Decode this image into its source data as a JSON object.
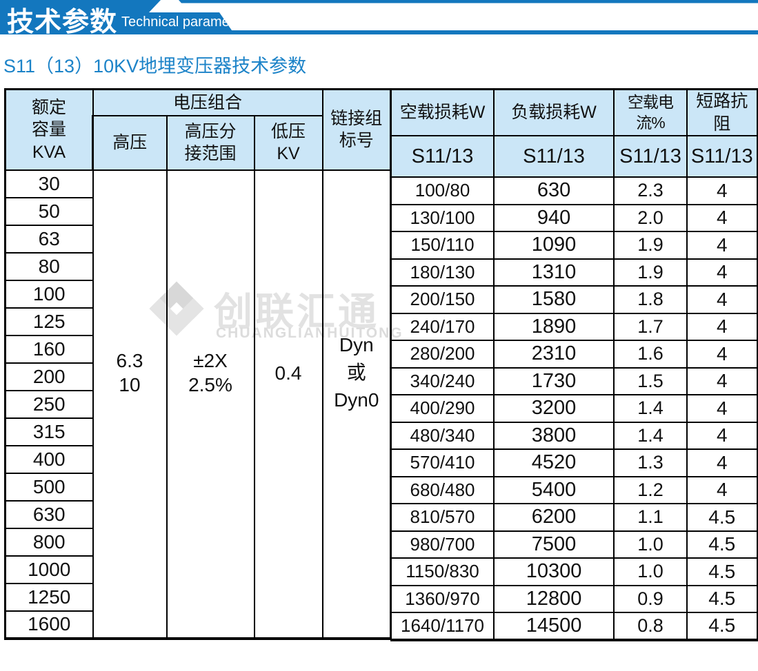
{
  "banner": {
    "title": "技术参数",
    "subtitle": "Technical parameter"
  },
  "page_title": "S11（13）10KV地埋变压器技术参数",
  "watermark": {
    "logo": "interlocked-diamond",
    "text_cn": "创联汇通",
    "text_en": "CHUANGLIANHUITONG"
  },
  "colors": {
    "banner_blue": "#1377BE",
    "title_blue": "#1C83C8",
    "header_bg": "#CBE6F7",
    "border": "#000000",
    "watermark_gray": "#E0E0E0"
  },
  "table": {
    "header": {
      "capacity": [
        "额定",
        "容量",
        "KVA"
      ],
      "voltage_combo": "电压组合",
      "hv": "高压",
      "hv_tap": [
        "高压分",
        "接范围"
      ],
      "lv": [
        "低压",
        "KV"
      ],
      "link_group": [
        "链接组",
        "标号"
      ],
      "noload_loss": "空载损耗W",
      "load_loss": "负载损耗W",
      "noload_current": "空载电流%",
      "impedance": "短路抗阻",
      "model": "S11/13"
    },
    "merged": {
      "hv": [
        "6.3",
        "10"
      ],
      "hv_tap": [
        "±2X",
        "2.5%"
      ],
      "lv": "0.4",
      "link_group": [
        "Dyn",
        "或",
        "Dyn0"
      ]
    },
    "rows": [
      {
        "capacity": "30",
        "noload_loss": "100/80",
        "load_loss": "630",
        "noload_current": "2.3",
        "impedance": "4"
      },
      {
        "capacity": "50",
        "noload_loss": "130/100",
        "load_loss": "940",
        "noload_current": "2.0",
        "impedance": "4"
      },
      {
        "capacity": "63",
        "noload_loss": "150/110",
        "load_loss": "1090",
        "noload_current": "1.9",
        "impedance": "4"
      },
      {
        "capacity": "80",
        "noload_loss": "180/130",
        "load_loss": "1310",
        "noload_current": "1.9",
        "impedance": "4"
      },
      {
        "capacity": "100",
        "noload_loss": "200/150",
        "load_loss": "1580",
        "noload_current": "1.8",
        "impedance": "4"
      },
      {
        "capacity": "125",
        "noload_loss": "240/170",
        "load_loss": "1890",
        "noload_current": "1.7",
        "impedance": "4"
      },
      {
        "capacity": "160",
        "noload_loss": "280/200",
        "load_loss": "2310",
        "noload_current": "1.6",
        "impedance": "4"
      },
      {
        "capacity": "200",
        "noload_loss": "340/240",
        "load_loss": "1730",
        "noload_current": "1.5",
        "impedance": "4"
      },
      {
        "capacity": "250",
        "noload_loss": "400/290",
        "load_loss": "3200",
        "noload_current": "1.4",
        "impedance": "4"
      },
      {
        "capacity": "315",
        "noload_loss": "480/340",
        "load_loss": "3800",
        "noload_current": "1.4",
        "impedance": "4"
      },
      {
        "capacity": "400",
        "noload_loss": "570/410",
        "load_loss": "4520",
        "noload_current": "1.3",
        "impedance": "4"
      },
      {
        "capacity": "500",
        "noload_loss": "680/480",
        "load_loss": "5400",
        "noload_current": "1.2",
        "impedance": "4"
      },
      {
        "capacity": "630",
        "noload_loss": "810/570",
        "load_loss": "6200",
        "noload_current": "1.1",
        "impedance": "4.5"
      },
      {
        "capacity": "800",
        "noload_loss": "980/700",
        "load_loss": "7500",
        "noload_current": "1.0",
        "impedance": "4.5"
      },
      {
        "capacity": "1000",
        "noload_loss": "1150/830",
        "load_loss": "10300",
        "noload_current": "1.0",
        "impedance": "4.5"
      },
      {
        "capacity": "1250",
        "noload_loss": "1360/970",
        "load_loss": "12800",
        "noload_current": "0.9",
        "impedance": "4.5"
      },
      {
        "capacity": "1600",
        "noload_loss": "1640/1170",
        "load_loss": "14500",
        "noload_current": "0.8",
        "impedance": "4.5"
      }
    ]
  }
}
